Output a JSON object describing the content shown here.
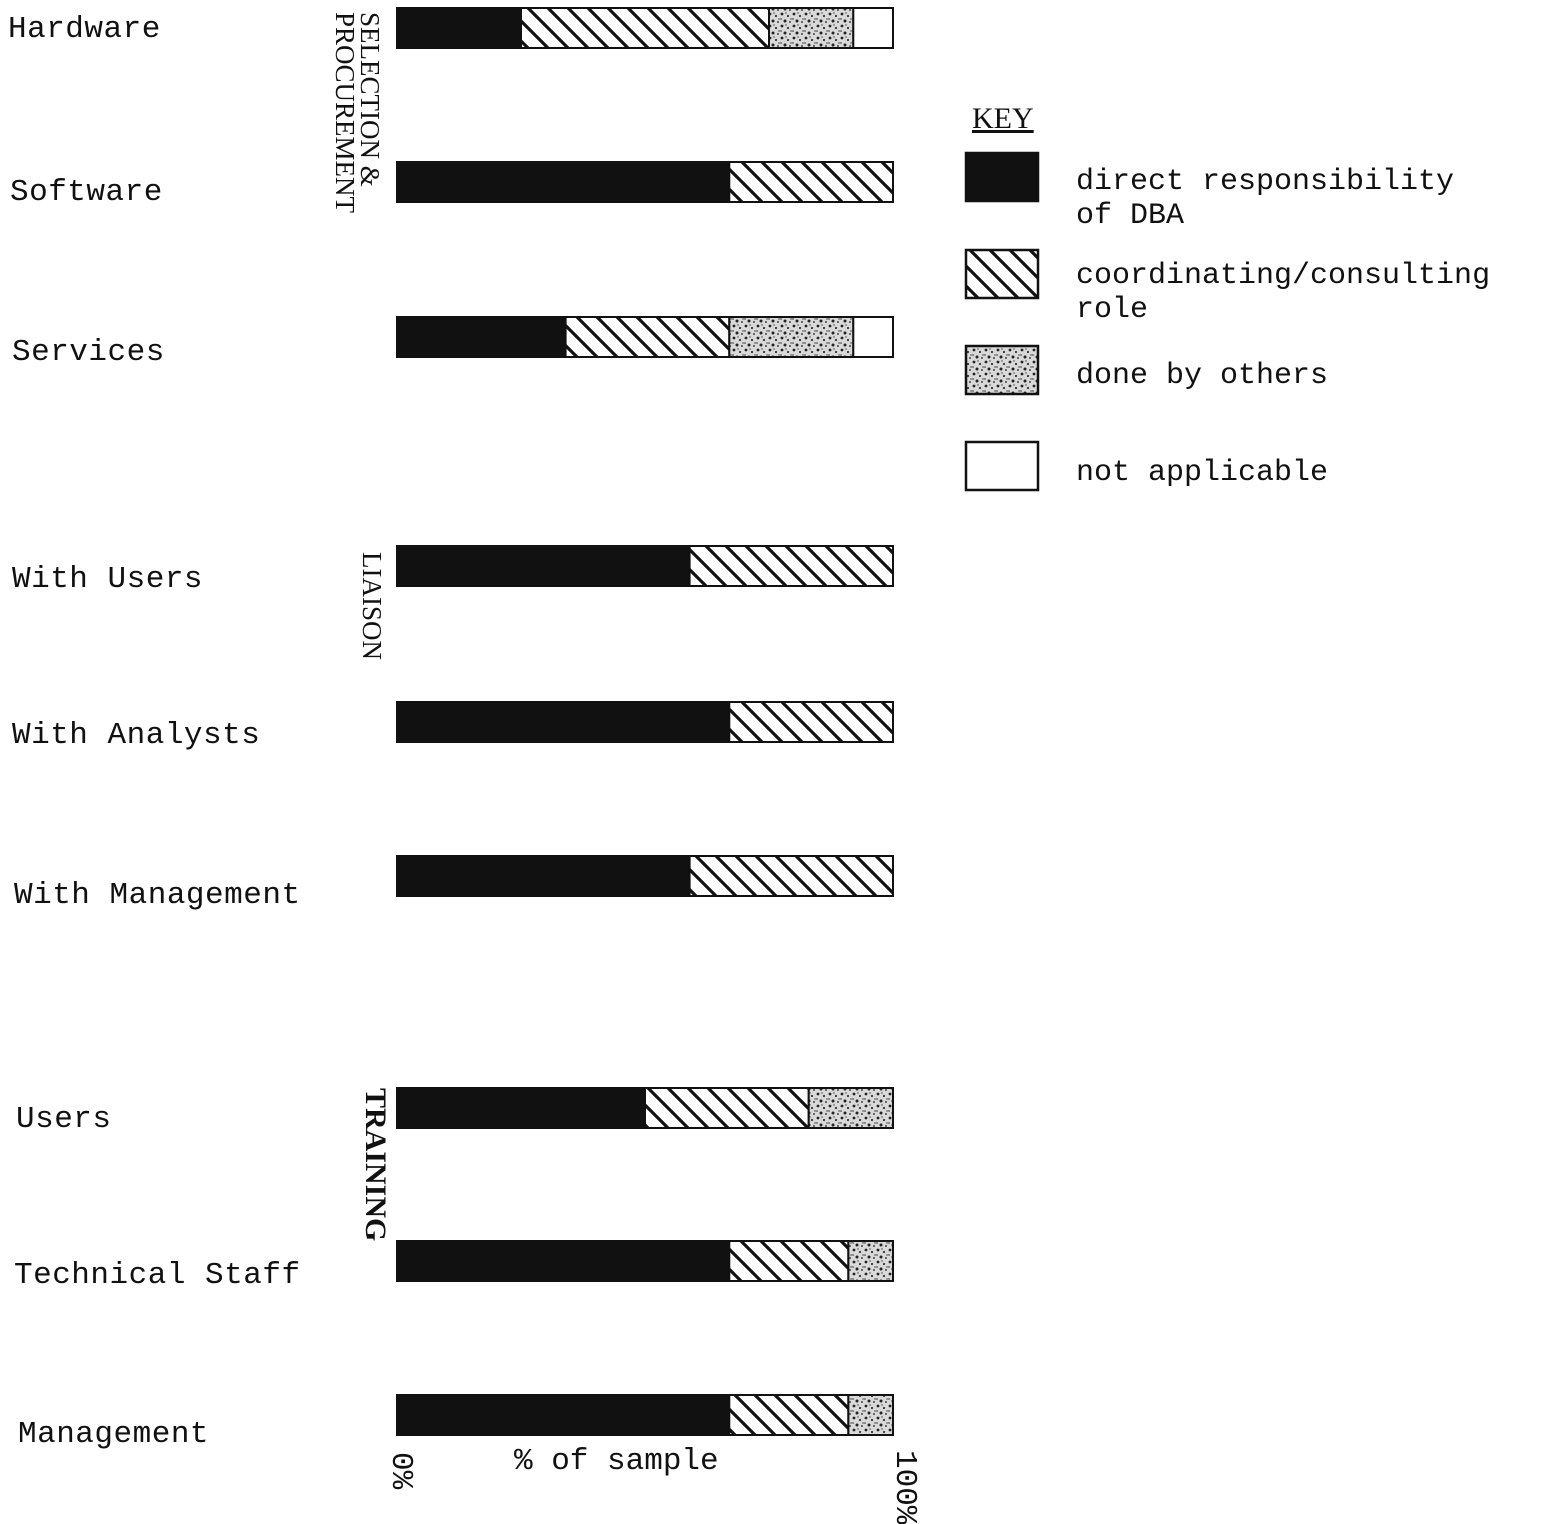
{
  "chart_data": {
    "type": "bar",
    "orientation": "horizontal",
    "stacked": true,
    "groups": [
      {
        "name": "SELECTION &\nPROCUREMENT",
        "categories": [
          "Hardware",
          "Software",
          "Services"
        ]
      },
      {
        "name": "LIAISON",
        "categories": [
          "With Users",
          "With Analysts",
          "With Management"
        ]
      },
      {
        "name": "TRAINING",
        "categories": [
          "Users",
          "Technical Staff",
          "Management"
        ]
      }
    ],
    "categories": [
      "Hardware",
      "Software",
      "Services",
      "With Users",
      "With Analysts",
      "With Management",
      "Users",
      "Technical Staff",
      "Management"
    ],
    "series": [
      {
        "name": "direct responsibility\nof DBA",
        "pattern": "solid",
        "values": [
          25,
          67,
          34,
          59,
          67,
          59,
          50,
          67,
          67
        ]
      },
      {
        "name": "coordinating/consulting\nrole",
        "pattern": "hatched",
        "values": [
          50,
          33,
          33,
          41,
          33,
          41,
          33,
          24,
          24
        ]
      },
      {
        "name": "done by others",
        "pattern": "stippled",
        "values": [
          17,
          0,
          25,
          0,
          0,
          0,
          17,
          9,
          9
        ]
      },
      {
        "name": "not applicable",
        "pattern": "open",
        "values": [
          8,
          0,
          8,
          0,
          0,
          0,
          0,
          0,
          0
        ]
      }
    ],
    "legend_title": "KEY",
    "legend_position": "top-right",
    "xlabel": "% of sample",
    "x_tick_labels": [
      "0%",
      "100%"
    ],
    "xlim": [
      0,
      100
    ],
    "grid": false
  },
  "colors": {
    "ink": "#111111",
    "paper": "#ffffff"
  }
}
